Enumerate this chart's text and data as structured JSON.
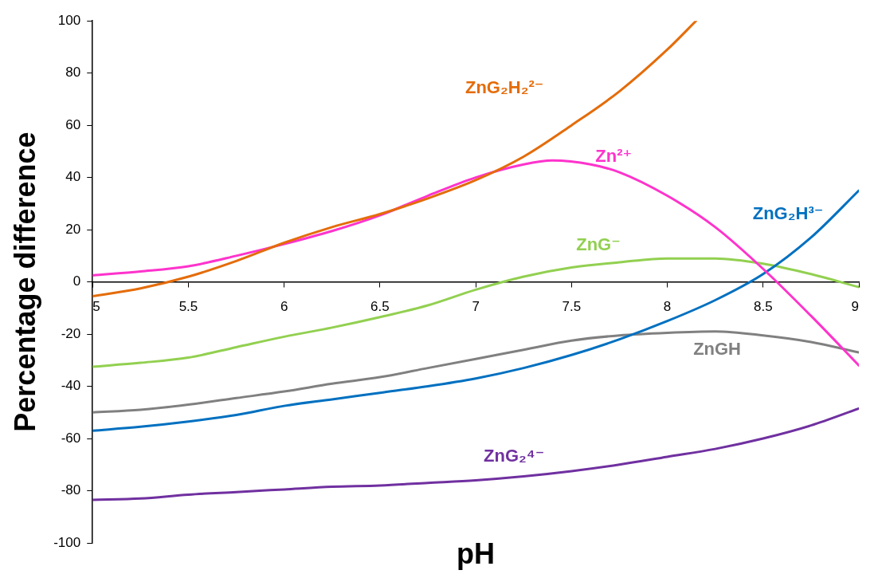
{
  "chart_data": {
    "type": "line",
    "xlabel": "pH",
    "ylabel": "Percentage difference",
    "x": [
      5,
      5.25,
      5.5,
      5.75,
      6,
      6.25,
      6.5,
      6.75,
      7,
      7.25,
      7.5,
      7.75,
      8,
      8.25,
      8.5,
      8.75,
      9
    ],
    "series": [
      {
        "name": "ZnG₂H₂²⁻",
        "color": "#e46c0a",
        "x": [
          5,
          5.25,
          5.5,
          5.75,
          6,
          6.25,
          6.5,
          6.75,
          7,
          7.25,
          7.5,
          7.75,
          8,
          8.15
        ],
        "values": [
          -5.5,
          -2.5,
          2,
          8,
          15,
          21,
          26,
          32,
          39,
          48,
          60,
          73,
          89,
          100
        ]
      },
      {
        "name": "Zn²⁺",
        "color": "#ff33cc",
        "x": [
          5,
          5.25,
          5.5,
          5.75,
          6,
          6.25,
          6.5,
          6.75,
          7,
          7.25,
          7.4,
          7.6,
          7.75,
          8,
          8.25,
          8.5,
          8.75,
          9
        ],
        "values": [
          2.5,
          4,
          6,
          10,
          14.5,
          19.5,
          25.5,
          33,
          40,
          45,
          46.5,
          45,
          42,
          33,
          21,
          5,
          -13,
          -32
        ]
      },
      {
        "name": "ZnG₂H³⁻",
        "color": "#0070c0",
        "values": [
          -57,
          -55.5,
          -53.5,
          -51,
          -47.5,
          -45,
          -42.5,
          -40,
          -37,
          -33,
          -28,
          -22,
          -15,
          -7,
          3,
          17,
          35
        ]
      },
      {
        "name": "ZnG⁻",
        "color": "#92d050",
        "values": [
          -32.5,
          -31,
          -29,
          -25,
          -21,
          -17.5,
          -13.5,
          -9,
          -3,
          2,
          5.5,
          7.5,
          9,
          9,
          7,
          3,
          -2
        ]
      },
      {
        "name": "ZnGH",
        "color": "#808080",
        "values": [
          -50,
          -49,
          -47,
          -44.5,
          -42,
          -39,
          -36.5,
          -33,
          -29.5,
          -26,
          -22.5,
          -20.5,
          -19.5,
          -19,
          -20.5,
          -23,
          -27
        ]
      },
      {
        "name": "ZnG₂⁴⁻",
        "color": "#7030a0",
        "values": [
          -83.5,
          -83,
          -81.5,
          -80.5,
          -79.5,
          -78.5,
          -78,
          -77,
          -76,
          -74.5,
          -72.5,
          -70,
          -67,
          -64,
          -60,
          -55,
          -48.5
        ]
      }
    ],
    "xlim": [
      5,
      9
    ],
    "xticks": [
      5,
      5.5,
      6,
      6.5,
      7,
      7.5,
      8,
      8.5,
      9
    ],
    "ylim": [
      -100,
      100
    ],
    "yticks": [
      -100,
      -80,
      -60,
      -40,
      -20,
      0,
      20,
      40,
      60,
      80,
      100
    ],
    "grid": false,
    "legend": false,
    "marker": "none",
    "line_style": "solid"
  }
}
